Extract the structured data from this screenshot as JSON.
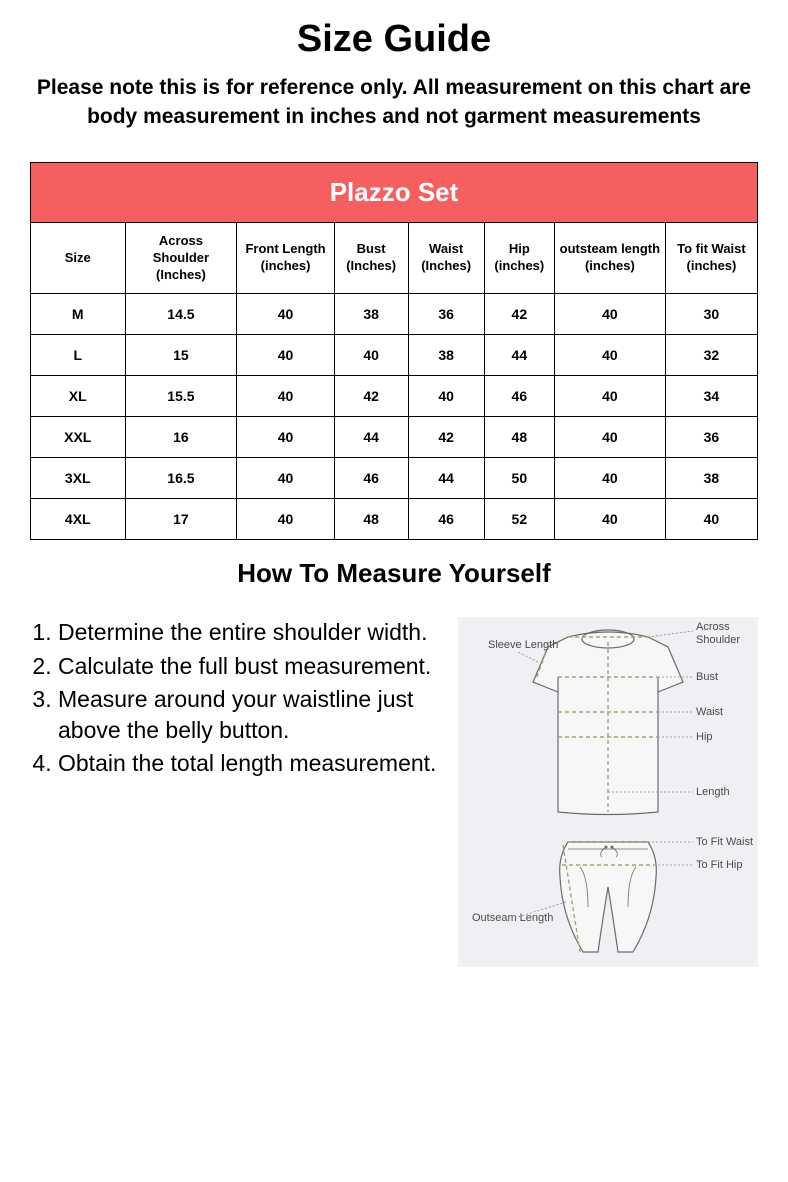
{
  "title": "Size Guide",
  "subtitle": "Please note this is for reference only. All measurement on this chart are body measurement in inches and not garment measurements",
  "table": {
    "caption": "Plazzo Set",
    "header_bg": "#f65f5f",
    "header_fg": "#ffffff",
    "border_color": "#000000",
    "columns": [
      "Size",
      "Across Shoulder (Inches)",
      "Front Length (inches)",
      "Bust (Inches)",
      "Waist (Inches)",
      "Hip (inches)",
      "outsteam length (inches)",
      "To fit Waist (inches)"
    ],
    "rows": [
      [
        "M",
        "14.5",
        "40",
        "38",
        "36",
        "42",
        "40",
        "30"
      ],
      [
        "L",
        "15",
        "40",
        "40",
        "38",
        "44",
        "40",
        "32"
      ],
      [
        "XL",
        "15.5",
        "40",
        "42",
        "40",
        "46",
        "40",
        "34"
      ],
      [
        "XXL",
        "16",
        "40",
        "44",
        "42",
        "48",
        "40",
        "36"
      ],
      [
        "3XL",
        "16.5",
        "40",
        "46",
        "44",
        "50",
        "40",
        "38"
      ],
      [
        "4XL",
        "17",
        "40",
        "48",
        "46",
        "52",
        "40",
        "40"
      ]
    ]
  },
  "measure_title": "How To Measure Yourself",
  "steps": [
    "Determine the entire shoulder width.",
    "Calculate the full bust measurement.",
    "Measure around your waistline just above the belly button.",
    "Obtain the total length measurement."
  ],
  "diagram": {
    "bg": "#eef0f3",
    "line_color": "#9aa87a",
    "outline_color": "#6b6b6b",
    "labels": {
      "sleeve": "Sleeve Length",
      "across": "Across Shoulder",
      "bust": "Bust",
      "waist": "Waist",
      "hip": "Hip",
      "length": "Length",
      "fit_waist": "To Fit Waist",
      "fit_hip": "To Fit Hip",
      "outseam": "Outseam Length"
    }
  }
}
